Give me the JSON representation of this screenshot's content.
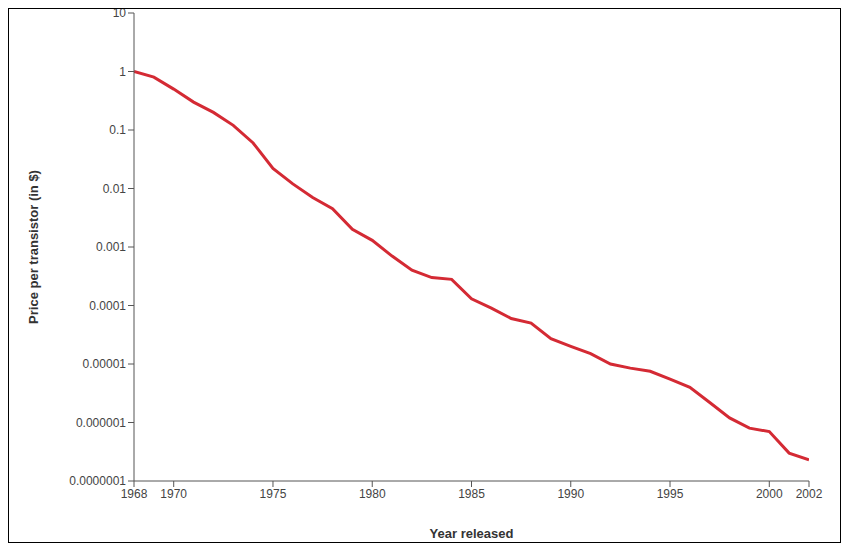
{
  "chart_data": {
    "type": "line",
    "xlabel": "Year released",
    "ylabel": "Price per transistor (in $)",
    "log": "y",
    "grid": false,
    "color": "#d42a34",
    "x": [
      1968,
      1969,
      1970,
      1971,
      1972,
      1973,
      1974,
      1975,
      1976,
      1977,
      1978,
      1979,
      1980,
      1981,
      1982,
      1983,
      1984,
      1985,
      1986,
      1987,
      1988,
      1989,
      1990,
      1991,
      1992,
      1993,
      1994,
      1995,
      1996,
      1997,
      1998,
      1999,
      2000,
      2001,
      2002
    ],
    "values": [
      1.0,
      0.8,
      0.5,
      0.3,
      0.2,
      0.12,
      0.06,
      0.022,
      0.012,
      0.007,
      0.0045,
      0.002,
      0.0013,
      0.0007,
      0.0004,
      0.0003,
      0.00028,
      0.00013,
      9e-05,
      6e-05,
      5e-05,
      2.7e-05,
      2e-05,
      1.5e-05,
      1e-05,
      8.5e-06,
      7.5e-06,
      5.5e-06,
      4e-06,
      2.2e-06,
      1.2e-06,
      8e-07,
      7e-07,
      3e-07,
      2.3e-07
    ],
    "xlim": [
      1968,
      2002
    ],
    "xticks": [
      1968,
      1970,
      1975,
      1980,
      1985,
      1990,
      1995,
      2000,
      2002
    ],
    "ylim": [
      1e-07,
      10
    ],
    "yticks": [
      {
        "value": 1e-07,
        "label": "0.0000001"
      },
      {
        "value": 1e-06,
        "label": "0.000001"
      },
      {
        "value": 1e-05,
        "label": "0.00001"
      },
      {
        "value": 0.0001,
        "label": "0.0001"
      },
      {
        "value": 0.001,
        "label": "0.001"
      },
      {
        "value": 0.01,
        "label": "0.01"
      },
      {
        "value": 0.1,
        "label": "0.1"
      },
      {
        "value": 1,
        "label": "1"
      },
      {
        "value": 10,
        "label": "10"
      }
    ]
  }
}
